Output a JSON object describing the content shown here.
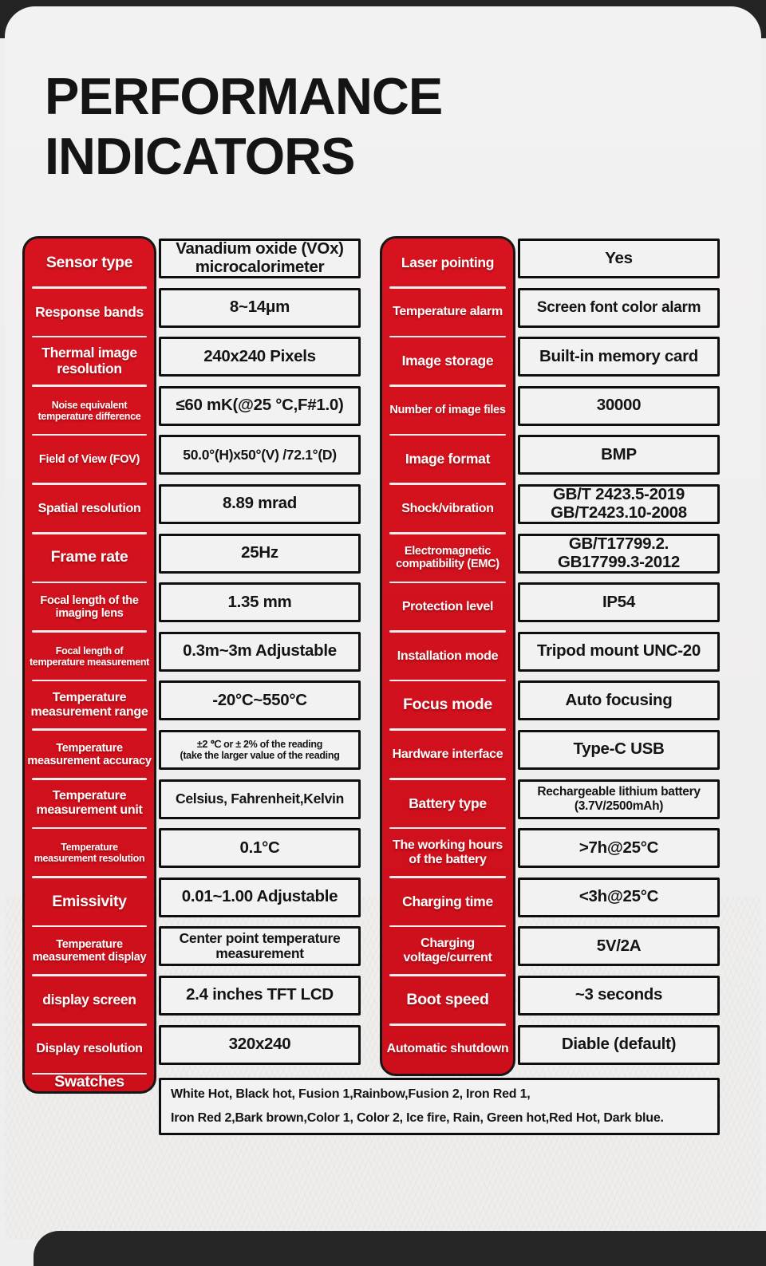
{
  "title": "PERFORMANCE INDICATORS",
  "colors": {
    "accent_red": "#d1121d",
    "card_bg": "#f1f0f0",
    "page_border_dark": "#232323",
    "value_bg": "#f3f2f2",
    "cell_border": "#0e0e0e",
    "label_text": "#ffffff",
    "value_text": "#141414"
  },
  "left": {
    "rows": [
      {
        "label": "Sensor type",
        "value": "Vanadium oxide (VOx)\nmicrocalorimeter"
      },
      {
        "label": "Response bands",
        "value": "8~14μm"
      },
      {
        "label": "Thermal image\nresolution",
        "value": "240x240 Pixels"
      },
      {
        "label": "Noise equivalent\ntemperature difference",
        "value": "≤60 mK(@25 °C,F#1.0)"
      },
      {
        "label": "Field of View (FOV)",
        "value": "50.0°(H)x50°(V) /72.1°(D)"
      },
      {
        "label": "Spatial resolution",
        "value": "8.89 mrad"
      },
      {
        "label": "Frame rate",
        "value": "25Hz"
      },
      {
        "label": "Focal length of the\nimaging lens",
        "value": "1.35 mm"
      },
      {
        "label": "Focal length of\ntemperature measurement",
        "value": "0.3m~3m Adjustable"
      },
      {
        "label": "Temperature\nmeasurement range",
        "value": "-20°C~550°C"
      },
      {
        "label": "Temperature\nmeasurement accuracy",
        "value": "±2 ℃ or ± 2% of the reading\n(take the larger value of the reading"
      },
      {
        "label": "Temperature\nmeasurement unit",
        "value": "Celsius, Fahrenheit,Kelvin"
      },
      {
        "label": "Temperature\nmeasurement resolution",
        "value": "0.1°C"
      },
      {
        "label": "Emissivity",
        "value": "0.01~1.00 Adjustable"
      },
      {
        "label": "Temperature\nmeasurement display",
        "value": "Center point temperature\nmeasurement"
      },
      {
        "label": "display screen",
        "value": "2.4 inches TFT LCD"
      },
      {
        "label": "Display resolution",
        "value": "320x240"
      }
    ]
  },
  "right": {
    "rows": [
      {
        "label": "Laser pointing",
        "value": "Yes"
      },
      {
        "label": "Temperature alarm",
        "value": "Screen font color alarm"
      },
      {
        "label": "Image storage",
        "value": "Built-in memory card"
      },
      {
        "label": "Number of image files",
        "value": "30000"
      },
      {
        "label": "Image format",
        "value": "BMP"
      },
      {
        "label": "Shock/vibration",
        "value": "GB/T 2423.5-2019\nGB/T2423.10-2008"
      },
      {
        "label": "Electromagnetic\ncompatibility (EMC)",
        "value": "GB/T17799.2.\nGB17799.3-2012"
      },
      {
        "label": "Protection level",
        "value": "IP54"
      },
      {
        "label": "Installation mode",
        "value": "Tripod mount UNC-20"
      },
      {
        "label": "Focus mode",
        "value": "Auto focusing"
      },
      {
        "label": "Hardware interface",
        "value": "Type-C USB"
      },
      {
        "label": "Battery type",
        "value": "Rechargeable lithium battery\n(3.7V/2500mAh)"
      },
      {
        "label": "The working hours\nof the battery",
        "value": ">7h@25°C"
      },
      {
        "label": "Charging time",
        "value": "<3h@25°C"
      },
      {
        "label": "Charging\nvoltage/current",
        "value": "5V/2A"
      },
      {
        "label": "Boot speed",
        "value": "~3 seconds"
      },
      {
        "label": "Automatic shutdown",
        "value": "Diable (default)"
      }
    ]
  },
  "swatches": {
    "label": "Swatches",
    "value": "White Hot, Black hot, Fusion 1,Rainbow,Fusion 2, Iron Red 1,\nIron Red 2,Bark brown,Color 1, Color 2, Ice fire, Rain, Green hot,Red Hot, Dark blue."
  }
}
